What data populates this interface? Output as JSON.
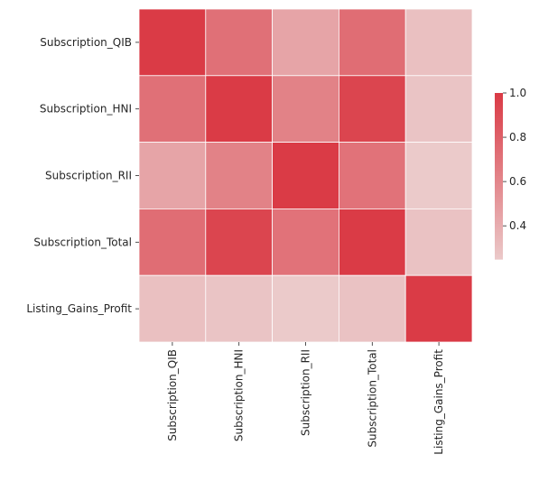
{
  "chart_data": {
    "type": "heatmap",
    "title": "",
    "xlabel": "",
    "ylabel": "",
    "rows": [
      "Subscription_QIB",
      "Subscription_HNI",
      "Subscription_RII",
      "Subscription_Total",
      "Listing_Gains_Profit"
    ],
    "columns": [
      "Subscription_QIB",
      "Subscription_HNI",
      "Subscription_RII",
      "Subscription_Total",
      "Listing_Gains_Profit"
    ],
    "values": [
      [
        1.0,
        0.72,
        0.45,
        0.74,
        0.3
      ],
      [
        0.72,
        1.0,
        0.63,
        0.95,
        0.28
      ],
      [
        0.45,
        0.63,
        1.0,
        0.71,
        0.25
      ],
      [
        0.74,
        0.95,
        0.71,
        1.0,
        0.29
      ],
      [
        0.3,
        0.28,
        0.25,
        0.29,
        1.0
      ]
    ],
    "colorbar": {
      "min": 0.25,
      "max": 1.0,
      "ticks": [
        "0.4",
        "0.6",
        "0.8",
        "1.0"
      ],
      "tick_values": [
        0.4,
        0.6,
        0.8,
        1.0
      ],
      "color_low": "#ebcaca",
      "color_high": "#da3b46"
    },
    "grid_line_color": "#ffffff"
  }
}
